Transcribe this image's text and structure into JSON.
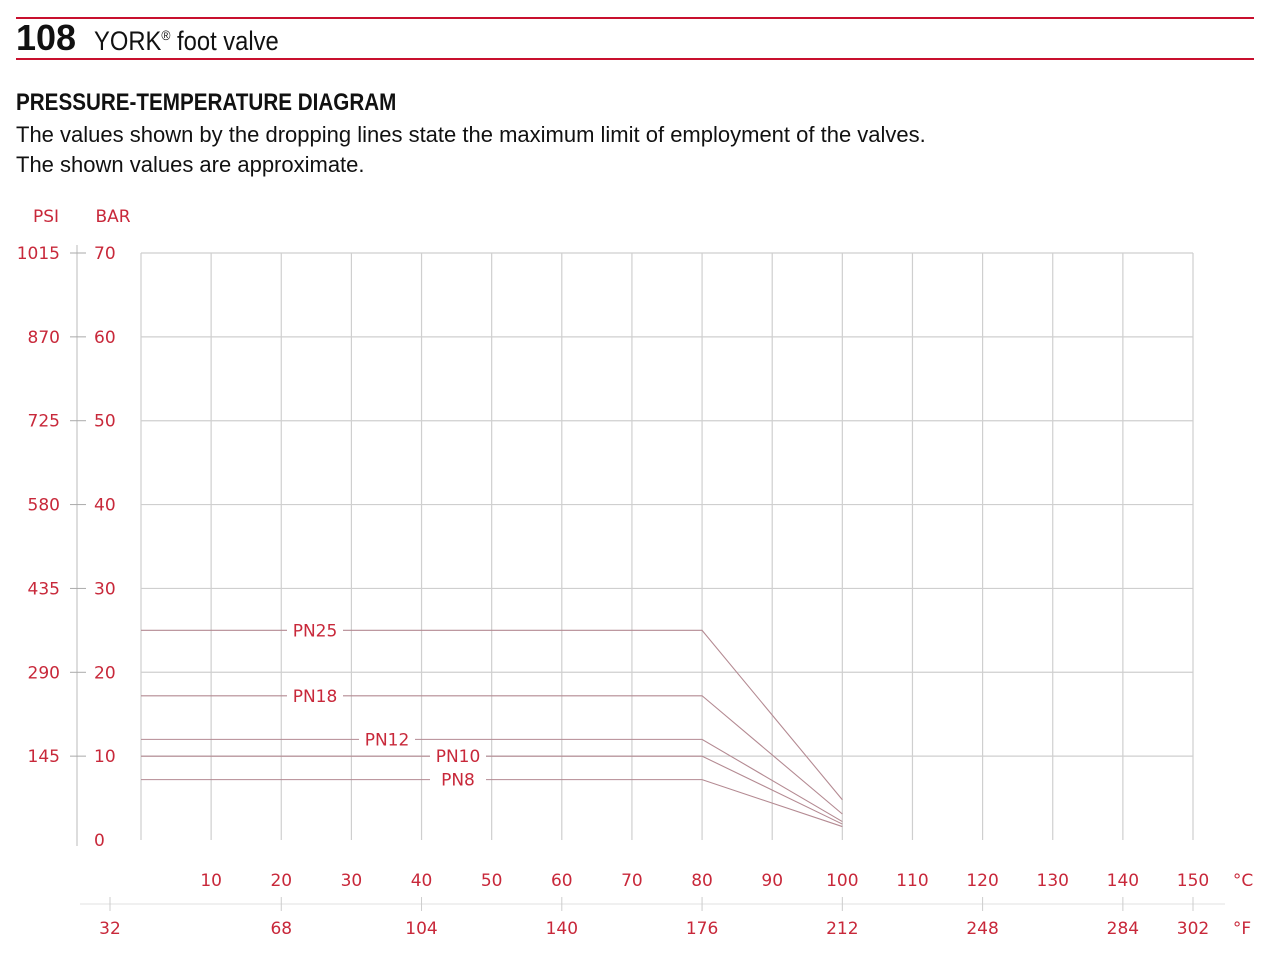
{
  "header": {
    "page_number": "108",
    "brand": "YORK",
    "registered_mark": "®",
    "product": "foot valve"
  },
  "section_title": "PRESSURE-TEMPERATURE DIAGRAM",
  "description": [
    "The values shown by the dropping lines state the maximum limit of employment of the valves.",
    "The shown values are approximate."
  ],
  "colors": {
    "accent": "#c8102e",
    "label": "#c8283a",
    "series_line": "#b48a92",
    "grid": "#d0d0d0"
  },
  "chart_data": {
    "type": "line",
    "title": "PRESSURE-TEMPERATURE DIAGRAM",
    "y_units": [
      "PSI",
      "BAR"
    ],
    "x_units": [
      "°C",
      "°F"
    ],
    "ylim": [
      0,
      70
    ],
    "xlim": [
      0,
      150
    ],
    "grid": true,
    "y_ticks_bar": [
      "70",
      "60",
      "50",
      "40",
      "30",
      "20",
      "10",
      "0"
    ],
    "y_ticks_bar_values": [
      70,
      60,
      50,
      40,
      30,
      20,
      10,
      0
    ],
    "y_ticks_psi": [
      "1015",
      "870",
      "725",
      "580",
      "435",
      "290",
      "145"
    ],
    "x_ticks_c": [
      "10",
      "20",
      "30",
      "40",
      "50",
      "60",
      "70",
      "80",
      "90",
      "100",
      "110",
      "120",
      "130",
      "140",
      "150"
    ],
    "x_ticks_c_values": [
      10,
      20,
      30,
      40,
      50,
      60,
      70,
      80,
      90,
      100,
      110,
      120,
      130,
      140,
      150
    ],
    "x_ticks_f": [
      "32",
      "68",
      "104",
      "140",
      "176",
      "212",
      "248",
      "284",
      "302"
    ],
    "x_ticks_f_celsius": [
      0,
      20,
      40,
      60,
      80,
      100,
      120,
      140,
      150
    ],
    "series": [
      {
        "name": "PN25",
        "x": [
          0,
          80,
          100
        ],
        "y": [
          25,
          25,
          4.8
        ]
      },
      {
        "name": "PN18",
        "x": [
          0,
          80,
          100
        ],
        "y": [
          17.2,
          17.2,
          3.1
        ]
      },
      {
        "name": "PN12",
        "x": [
          0,
          80,
          100
        ],
        "y": [
          12,
          12,
          2.2
        ]
      },
      {
        "name": "PN10",
        "x": [
          0,
          80,
          100
        ],
        "y": [
          10,
          10,
          1.9
        ]
      },
      {
        "name": "PN8",
        "x": [
          0,
          80,
          100
        ],
        "y": [
          7.2,
          7.2,
          1.6
        ]
      }
    ]
  }
}
